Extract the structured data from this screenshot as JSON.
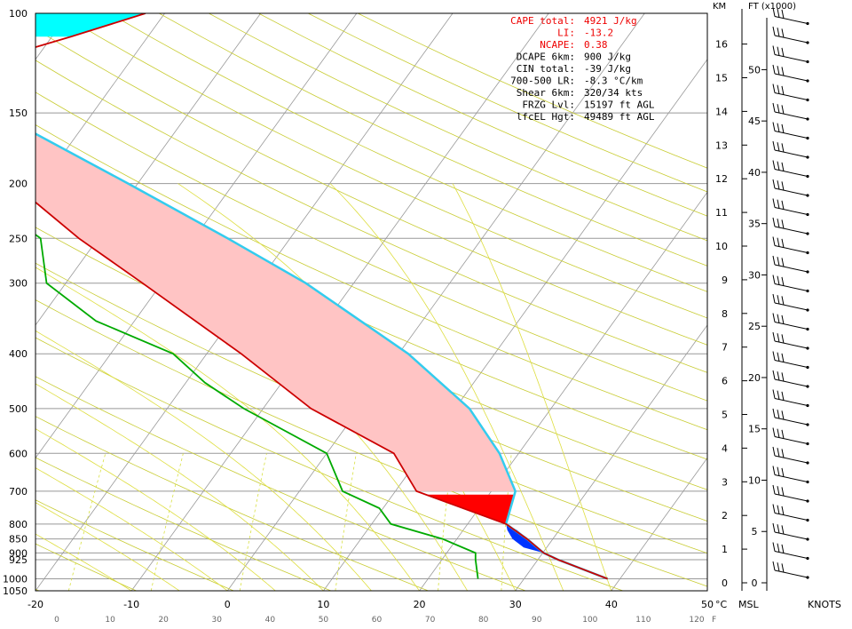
{
  "chart_data": {
    "type": "line",
    "pressure_axis": {
      "labels": [
        "100",
        "150",
        "200",
        "250",
        "300",
        "400",
        "500",
        "600",
        "700",
        "800",
        "850",
        "900",
        "925",
        "1000",
        "1050"
      ],
      "values": [
        100,
        150,
        200,
        250,
        300,
        400,
        500,
        600,
        700,
        800,
        850,
        900,
        925,
        1000,
        1050
      ],
      "scale": "log"
    },
    "temperature_axis_c": {
      "labels": [
        "-20",
        "-10",
        "0",
        "10",
        "20",
        "30",
        "40",
        "50"
      ],
      "values": [
        -20,
        -10,
        0,
        10,
        20,
        30,
        40,
        50
      ],
      "unit": "°C",
      "xlim": [
        -20,
        50
      ]
    },
    "temperature_axis_f": {
      "labels": [
        "0",
        "10",
        "20",
        "30",
        "40",
        "50",
        "60",
        "70",
        "80",
        "90",
        "100",
        "110",
        "120"
      ],
      "values": [
        0,
        10,
        20,
        30,
        40,
        50,
        60,
        70,
        80,
        90,
        100,
        110,
        120
      ],
      "unit": "F"
    },
    "height_km_axis": {
      "header": "KM",
      "labels": [
        "0",
        "1",
        "2",
        "3",
        "4",
        "5",
        "6",
        "7",
        "8",
        "9",
        "10",
        "11",
        "12",
        "13",
        "14",
        "15",
        "16"
      ],
      "values": [
        0,
        1,
        2,
        3,
        4,
        5,
        6,
        7,
        8,
        9,
        10,
        11,
        12,
        13,
        14,
        15,
        16
      ],
      "footer": "MSL"
    },
    "height_ft_axis": {
      "header": "FT (x1000)",
      "labels": [
        "0",
        "5",
        "10",
        "15",
        "20",
        "25",
        "30",
        "35",
        "40",
        "45",
        "50"
      ],
      "values": [
        0,
        5,
        10,
        15,
        20,
        25,
        30,
        35,
        40,
        45,
        50
      ]
    },
    "wind_axis_label": "KNOTS",
    "series": [
      {
        "color": "#cc0000",
        "points": [
          [
            1000,
            38.7
          ],
          [
            925,
            32.1
          ],
          [
            900,
            30.1
          ],
          [
            850,
            27.3
          ],
          [
            800,
            24.0
          ],
          [
            700,
            12.2
          ],
          [
            600,
            7.0
          ],
          [
            500,
            -5.0
          ],
          [
            400,
            -16.4
          ],
          [
            300,
            -32.0
          ],
          [
            250,
            -42.0
          ],
          [
            200,
            -53.0
          ],
          [
            150,
            -67.0
          ],
          [
            120,
            -64.0
          ],
          [
            110,
            -58.0
          ],
          [
            100,
            -52.0
          ]
        ]
      },
      {
        "color": "#00aa00",
        "points": [
          [
            1000,
            25.2
          ],
          [
            925,
            23.5
          ],
          [
            900,
            23.0
          ],
          [
            850,
            18.5
          ],
          [
            800,
            12.0
          ],
          [
            750,
            9.6
          ],
          [
            700,
            4.5
          ],
          [
            600,
            0.0
          ],
          [
            500,
            -12.0
          ],
          [
            450,
            -18.0
          ],
          [
            400,
            -23.5
          ],
          [
            350,
            -34.0
          ],
          [
            300,
            -42.0
          ],
          [
            250,
            -46.0
          ],
          [
            200,
            -58.0
          ],
          [
            150,
            -73.0
          ],
          [
            120,
            -82.0
          ],
          [
            100,
            -85.0
          ]
        ]
      },
      {
        "color": "#33ccee",
        "points": [
          [
            1000,
            38.7
          ],
          [
            925,
            32.1
          ],
          [
            900,
            30.1
          ],
          [
            850,
            27.3
          ],
          [
            800,
            24.0
          ],
          [
            700,
            22.5
          ],
          [
            600,
            18.0
          ],
          [
            500,
            11.5
          ],
          [
            400,
            1.0
          ],
          [
            300,
            -15.0
          ],
          [
            250,
            -26.5
          ],
          [
            200,
            -41.0
          ],
          [
            150,
            -60.0
          ],
          [
            100,
            -80.0
          ]
        ]
      }
    ],
    "stats": [
      {
        "label": "CAPE total:",
        "value": "4921 J/kg",
        "color": "#ee0000"
      },
      {
        "label": "LI:",
        "value": "-13.2",
        "color": "#ee0000"
      },
      {
        "label": "NCAPE:",
        "value": "0.38",
        "color": "#ee0000"
      },
      {
        "label": "DCAPE 6km:",
        "value": "900 J/kg",
        "color": "#000000"
      },
      {
        "label": "CIN total:",
        "value": "-39 J/kg",
        "color": "#000000"
      },
      {
        "label": "700-500 LR:",
        "value": "-8.3 °C/km",
        "color": "#000000"
      },
      {
        "label": "Shear 6km:",
        "value": "320/34 kts",
        "color": "#000000"
      },
      {
        "label": "FRZG Lvl:",
        "value": "15197 ft AGL",
        "color": "#000000"
      },
      {
        "label": "lfcEL Hgt:",
        "value": "49489 ft AGL",
        "color": "#000000"
      }
    ],
    "colors": {
      "positive_area": "#ffc4c4",
      "negative_area": "#00ffff",
      "cin_area": "#ff0000",
      "dcape_area": "#0033ff",
      "isotherm": "#999999",
      "dry_adiabat": "#c8cc33",
      "moist_adiabat": "#dede40",
      "mixing_ratio": "#d8e040",
      "isobar": "#999999"
    }
  }
}
